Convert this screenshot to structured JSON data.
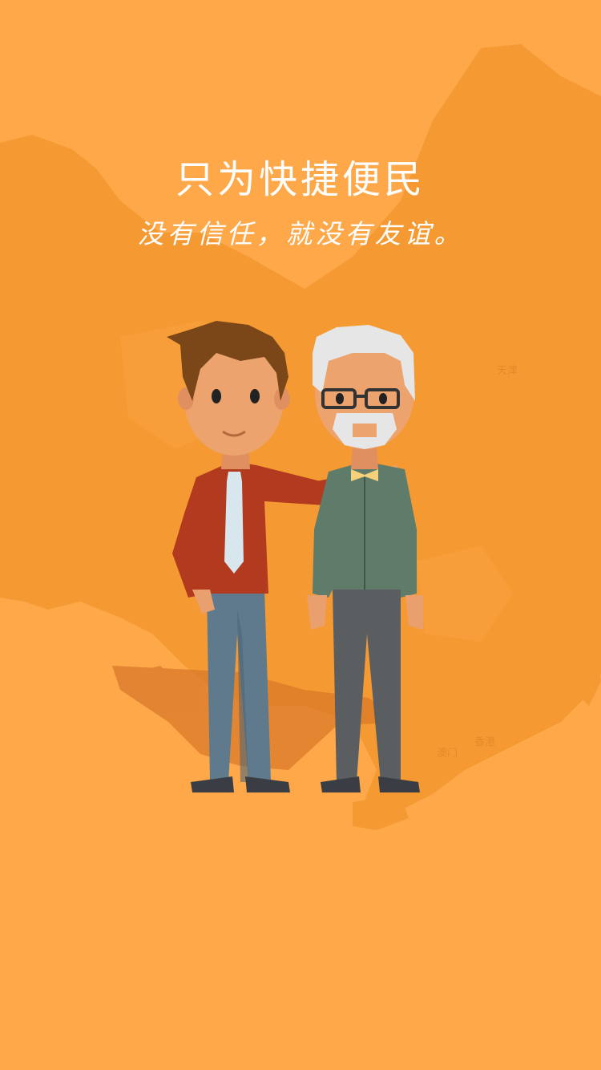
{
  "headline": "只为快捷便民",
  "tagline": "没有信任，就没有友谊。",
  "map_labels": {
    "tianjin": "天津",
    "macau": "澳门",
    "hong_kong": "香港"
  },
  "colors": {
    "background": "#ffa84a",
    "map": "#f59a33",
    "text": "#ffffff"
  }
}
